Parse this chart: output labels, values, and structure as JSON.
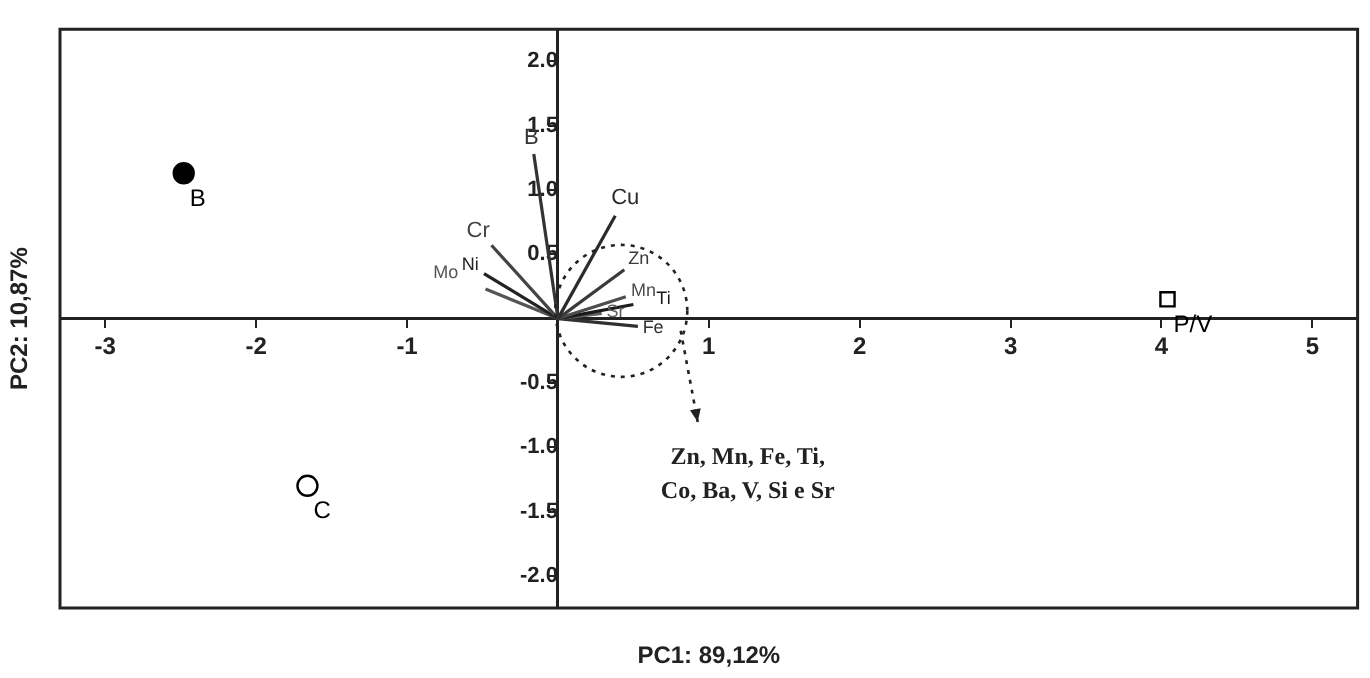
{
  "chart_data": {
    "type": "scatter",
    "xlabel": "PC1: 89,12%",
    "ylabel": "PC2: 10,87%",
    "xlim": [
      -3.3,
      5.3
    ],
    "ylim": [
      -2.25,
      2.25
    ],
    "xticks": [
      -3,
      -2,
      -1,
      {
        "value": 0,
        "label": null
      },
      1,
      2,
      3,
      4,
      5
    ],
    "yticks": [
      {
        "value": -2,
        "label": "-2.0"
      },
      {
        "value": -1.5,
        "label": "-1.5"
      },
      {
        "value": -1,
        "label": "-1.0"
      },
      {
        "value": -0.5,
        "label": "-0.5"
      },
      {
        "value": 0,
        "label": null
      },
      {
        "value": 0.5,
        "label": "0.5"
      },
      {
        "value": 1,
        "label": "1.0"
      },
      {
        "value": 1.5,
        "label": "1.5"
      },
      {
        "value": 2,
        "label": "2.0"
      }
    ],
    "grid": false,
    "legend": false,
    "series": [
      {
        "name": "B",
        "marker": "circle",
        "color": "#000000",
        "x": [
          -2.48
        ],
        "values": [
          1.13
        ]
      },
      {
        "name": "C",
        "marker": "circle",
        "color": "#000000",
        "x": [
          -1.66
        ],
        "values": [
          -1.3
        ]
      },
      {
        "name": "P/V",
        "marker": "square",
        "color": "#000000",
        "x": [
          4.04
        ],
        "values": [
          0.15
        ]
      },
      {
        "name": "B",
        "type": "line",
        "marker": "none",
        "color": "#333333",
        "x": [
          0,
          -0.16
        ],
        "values": [
          0,
          1.28
        ]
      },
      {
        "name": "Cu",
        "type": "line",
        "marker": "none",
        "color": "#2b2b2b",
        "x": [
          0,
          0.38
        ],
        "values": [
          0,
          0.8
        ]
      },
      {
        "name": "Cr",
        "type": "line",
        "marker": "none",
        "color": "#444444",
        "x": [
          0,
          -0.44
        ],
        "values": [
          0,
          0.57
        ]
      },
      {
        "name": "Ni",
        "type": "line",
        "marker": "none",
        "color": "#222222",
        "x": [
          0,
          -0.49
        ],
        "values": [
          0,
          0.35
        ]
      },
      {
        "name": "Mo",
        "type": "line",
        "marker": "none",
        "color": "#555555",
        "x": [
          0,
          -0.48
        ],
        "values": [
          0,
          0.23
        ]
      },
      {
        "name": "Zn",
        "type": "line",
        "marker": "none",
        "color": "#3a3a3a",
        "x": [
          0,
          0.44
        ],
        "values": [
          0,
          0.38
        ]
      },
      {
        "name": "Mn",
        "type": "line",
        "marker": "none",
        "color": "#4d4d4d",
        "x": [
          0,
          0.45
        ],
        "values": [
          0,
          0.17
        ]
      },
      {
        "name": "Ti",
        "type": "line",
        "marker": "none",
        "color": "#1a1a1a",
        "x": [
          0,
          0.5
        ],
        "values": [
          0,
          0.11
        ]
      },
      {
        "name": "Sr",
        "type": "line",
        "marker": "none",
        "color": "#5e5e5e",
        "x": [
          0,
          0.29
        ],
        "values": [
          0,
          0.04
        ]
      },
      {
        "name": "Fe",
        "type": "line",
        "marker": "none",
        "color": "#303030",
        "x": [
          0,
          0.53
        ],
        "values": [
          0,
          -0.06
        ]
      }
    ],
    "annotations": [
      "Zn, Mn, Fe, Ti,\nCo, Ba, V, Si e Sr"
    ]
  }
}
